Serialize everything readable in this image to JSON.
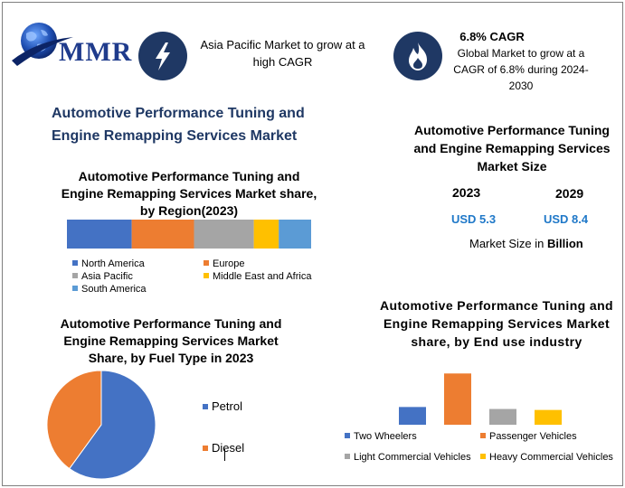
{
  "header": {
    "logo_text": "MMR",
    "highlight1": {
      "icon": "lightning-bolt-icon",
      "text": "Asia Pacific Market to grow at a high CAGR"
    },
    "highlight2": {
      "icon": "flame-icon",
      "title": "6.8% CAGR",
      "text": "Global Market to grow at a CAGR of 6.8% during 2024-2030"
    }
  },
  "main_title": "Automotive Performance Tuning and Engine Remapping Services Market",
  "market_size": {
    "title": "Automotive Performance Tuning and Engine Remapping Services Market Size",
    "year1": "2023",
    "year2": "2029",
    "value1": "USD 5.3",
    "value2": "USD 8.4",
    "unit_prefix": "Market Size in ",
    "unit_bold": "Billion"
  },
  "colors": {
    "blue": "#4472c4",
    "orange": "#ed7d31",
    "gray": "#a5a5a5",
    "yellow": "#ffc000",
    "lightblue": "#5b9bd5",
    "navy": "#1f3864"
  },
  "chart_data": [
    {
      "type": "bar",
      "orientation": "horizontal-stacked",
      "title": "Automotive Performance Tuning and Engine Remapping Services Market share, by Region(2023)",
      "categories": [
        "North America",
        "Europe",
        "Asia Pacific",
        "Middle East and Africa",
        "South America"
      ],
      "values": [
        26,
        25,
        24,
        10,
        13
      ],
      "colors": [
        "#4472c4",
        "#ed7d31",
        "#a5a5a5",
        "#ffc000",
        "#5b9bd5"
      ],
      "legend_position": "bottom"
    },
    {
      "type": "pie",
      "title": "Automotive Performance Tuning and Engine Remapping Services Market Share, by Fuel Type in 2023",
      "categories": [
        "Petrol",
        "Diesel"
      ],
      "values": [
        60,
        40
      ],
      "colors": [
        "#4472c4",
        "#ed7d31"
      ],
      "legend_position": "right"
    },
    {
      "type": "bar",
      "title": "Automotive Performance Tuning and Engine Remapping Services Market share, by End use industry",
      "categories": [
        "Two Wheelers",
        "Passenger Vehicles",
        "Light Commercial Vehicles",
        "Heavy Commercial Vehicles"
      ],
      "values": [
        18,
        52,
        16,
        15
      ],
      "colors": [
        "#4472c4",
        "#ed7d31",
        "#a5a5a5",
        "#ffc000"
      ],
      "ylim": [
        0,
        55
      ],
      "legend_position": "bottom"
    }
  ]
}
